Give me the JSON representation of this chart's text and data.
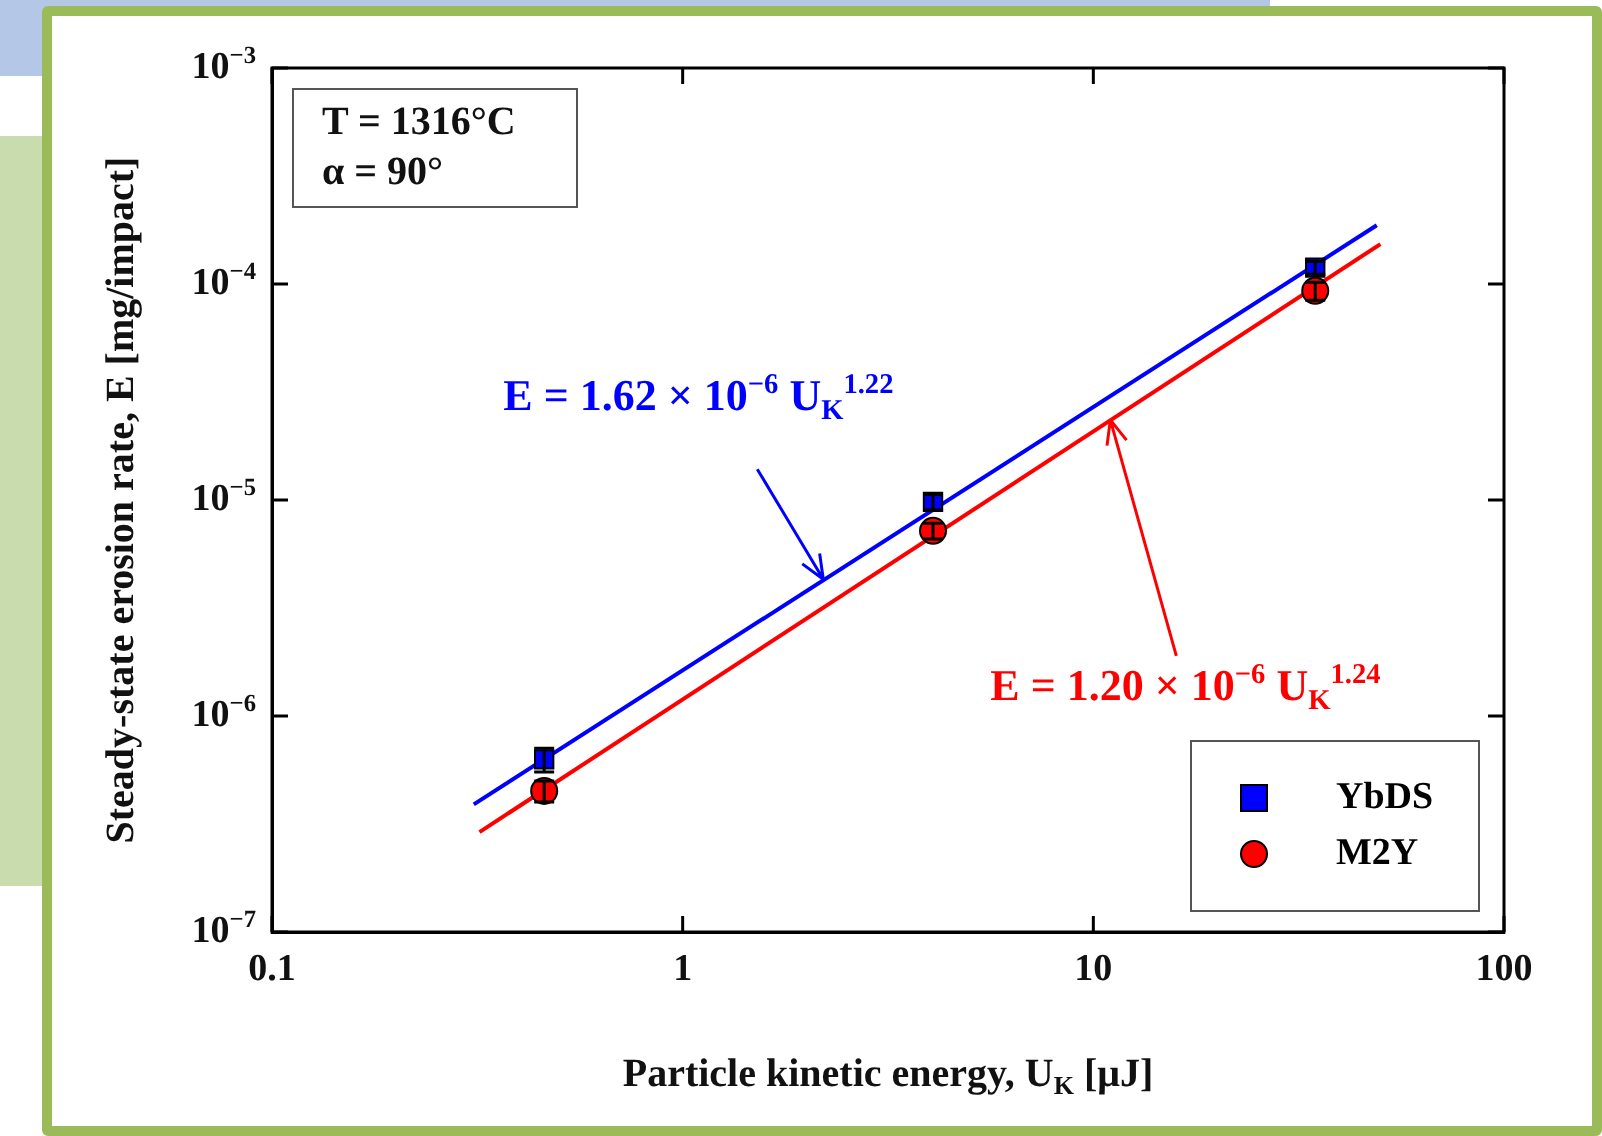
{
  "chart_data": {
    "type": "scatter",
    "xlabel": "Particle kinetic energy, U$_{K}$ [μJ]",
    "ylabel": "Steady-state erosion rate, E [mg/impact]",
    "log": "xy",
    "grid": false,
    "legend": "bottom right",
    "xlim": [
      0.1,
      100
    ],
    "xticks": [
      0.1,
      1,
      10,
      100
    ],
    "ylim": [
      1e-07,
      0.001
    ],
    "yticks": [
      {
        "value": 1e-07,
        "label": "10$^{−7}$"
      },
      {
        "value": 1e-06,
        "label": "10$^{−6}$"
      },
      {
        "value": 1e-05,
        "label": "10$^{−5}$"
      },
      {
        "value": 0.0001,
        "label": "10$^{−4}$"
      },
      {
        "value": 0.001,
        "label": "10$^{−3}$"
      }
    ],
    "annotations": [
      "T = 1316°C",
      "α = 90°",
      {
        "text": "E = 1.62 × 10$^{−6}$ U$_{K}$$^{1.22}$",
        "x": 2.2,
        "y": 4.3e-06
      },
      {
        "text": "E = 1.20 × 10$^{−6}$ U$_{K}$$^{1.24}$",
        "x": 11,
        "y": 2.35e-05
      }
    ],
    "series": [
      {
        "name": "YbDS",
        "marker": "square",
        "color": "#0000ff",
        "x": [
          0.46,
          4.07,
          34.7
        ],
        "values": [
          6.3e-07,
          9.8e-06,
          0.000119
        ],
        "errors": [
          8e-08,
          8e-07,
          8e-06
        ]
      },
      {
        "name": "M2Y",
        "marker": "circle",
        "color": "#ff0000",
        "x": [
          0.46,
          4.07,
          34.7
        ],
        "values": [
          4.5e-07,
          7.2e-06,
          9.3e-05
        ],
        "errors": [
          5e-08,
          6e-07,
          9e-06
        ]
      },
      {
        "type": "line",
        "marker": "none",
        "color": "#0000ff",
        "x": [
          0.31,
          49
        ],
        "values": [
          3.9e-07,
          0.000187
        ]
      },
      {
        "type": "line",
        "marker": "none",
        "color": "#ff0000",
        "x": [
          0.32,
          50
        ],
        "values": [
          2.9e-07,
          0.000153
        ]
      }
    ]
  }
}
